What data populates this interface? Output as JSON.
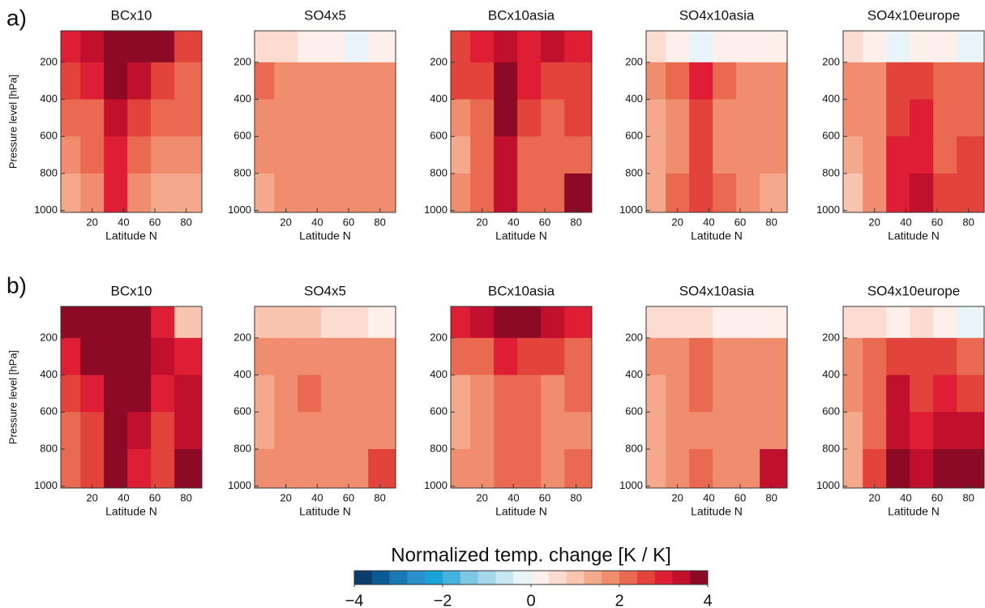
{
  "panel_labels": [
    "a)",
    "b)"
  ],
  "colorbar": {
    "label": "Normalized temp. change [K / K]",
    "lim": [
      -4,
      4
    ],
    "ticks": [
      {
        "value": -4,
        "label": "−4"
      },
      {
        "value": -2,
        "label": "−2"
      },
      0,
      2,
      4
    ],
    "colors": [
      "#0b3d6b",
      "#0a5a94",
      "#1a78b4",
      "#2b8fcb",
      "#1aa3d6",
      "#45b2dd",
      "#7cc7e3",
      "#a5d7ea",
      "#c9e7f0",
      "#e8f4f7",
      "#fdf0ea",
      "#fcdcd0",
      "#f9c4b0",
      "#f5a98c",
      "#f08d6e",
      "#e96a50",
      "#e2433a",
      "#dd1e34",
      "#c10f2e",
      "#8c0a25"
    ]
  },
  "chart_data": [
    {
      "type": "heatmap",
      "title": "BCx10",
      "xlabel": "Latitude N",
      "ylabel": "Pressure level [hPa]",
      "x": [
        5,
        20,
        35,
        50,
        65,
        80
      ],
      "y": [
        100,
        300,
        500,
        700,
        900
      ],
      "xlim": [
        0,
        90
      ],
      "ylim": [
        1010,
        30
      ],
      "xticks": [
        20,
        40,
        60,
        80
      ],
      "yticks": [
        200,
        400,
        600,
        800,
        1000
      ],
      "values": [
        [
          2.8,
          3.2,
          3.8,
          3.8,
          3.6,
          2.6
        ],
        [
          2.4,
          2.8,
          3.6,
          3.2,
          2.6,
          2.2
        ],
        [
          2,
          2.2,
          3.2,
          2.6,
          2.2,
          2
        ],
        [
          1.8,
          2,
          3,
          2.2,
          1.8,
          1.8
        ],
        [
          1.2,
          1.6,
          3,
          1.6,
          1.2,
          1.2
        ]
      ]
    },
    {
      "type": "heatmap",
      "title": "SO4x5",
      "xlabel": "Latitude N",
      "x": [
        5,
        20,
        35,
        50,
        65,
        80
      ],
      "y": [
        100,
        300,
        500,
        700,
        900
      ],
      "xlim": [
        0,
        90
      ],
      "ylim": [
        1010,
        30
      ],
      "xticks": [
        20,
        40,
        60,
        80
      ],
      "yticks": [
        200,
        400,
        600,
        800,
        1000
      ],
      "values": [
        [
          0.4,
          0.4,
          0.2,
          0.2,
          -0.2,
          0.2
        ],
        [
          2,
          1.8,
          1.8,
          1.8,
          1.8,
          1.8
        ],
        [
          1.8,
          1.8,
          1.8,
          1.8,
          1.8,
          1.8
        ],
        [
          1.6,
          1.8,
          1.8,
          1.8,
          1.8,
          1.8
        ],
        [
          1.4,
          1.6,
          1.6,
          1.8,
          1.8,
          1.6
        ]
      ]
    },
    {
      "type": "heatmap",
      "title": "BCx10asia",
      "xlabel": "Latitude N",
      "x": [
        5,
        20,
        35,
        50,
        65,
        80
      ],
      "y": [
        100,
        300,
        500,
        700,
        900
      ],
      "xlim": [
        0,
        90
      ],
      "ylim": [
        1010,
        30
      ],
      "xticks": [
        20,
        40,
        60,
        80
      ],
      "yticks": [
        200,
        400,
        600,
        800,
        1000
      ],
      "values": [
        [
          2.6,
          2.8,
          3.2,
          3,
          3.2,
          2.8
        ],
        [
          2.4,
          2.6,
          3.8,
          3,
          2.4,
          2.6
        ],
        [
          1.6,
          2.2,
          3.8,
          2.6,
          2.2,
          2.4
        ],
        [
          1.4,
          2,
          3.2,
          2.2,
          2,
          2.2
        ],
        [
          1.6,
          2.2,
          3.2,
          2.2,
          2.2,
          3.8
        ]
      ]
    },
    {
      "type": "heatmap",
      "title": "SO4x10asia",
      "xlabel": "Latitude N",
      "x": [
        5,
        20,
        35,
        50,
        65,
        80
      ],
      "y": [
        100,
        300,
        500,
        700,
        900
      ],
      "xlim": [
        0,
        90
      ],
      "ylim": [
        1010,
        30
      ],
      "xticks": [
        20,
        40,
        60,
        80
      ],
      "yticks": [
        200,
        400,
        600,
        800,
        1000
      ],
      "values": [
        [
          0.4,
          0.2,
          -0.2,
          0.2,
          0,
          0.2
        ],
        [
          1.6,
          2,
          2.8,
          2,
          1.8,
          1.8
        ],
        [
          1.4,
          1.8,
          2.4,
          1.8,
          1.6,
          1.8
        ],
        [
          1.2,
          1.8,
          2.4,
          1.8,
          1.6,
          1.8
        ],
        [
          1.2,
          2,
          2.6,
          2,
          1.6,
          1.4
        ]
      ]
    },
    {
      "type": "heatmap",
      "title": "SO4x10europe",
      "xlabel": "Latitude N",
      "x": [
        5,
        20,
        35,
        50,
        65,
        80
      ],
      "y": [
        100,
        300,
        500,
        700,
        900
      ],
      "xlim": [
        0,
        90
      ],
      "ylim": [
        1010,
        30
      ],
      "xticks": [
        20,
        40,
        60,
        80
      ],
      "yticks": [
        200,
        400,
        600,
        800,
        1000
      ],
      "values": [
        [
          0.4,
          0,
          -0.4,
          0,
          0.2,
          -0.2
        ],
        [
          1.6,
          1.6,
          2.4,
          2.6,
          2,
          2
        ],
        [
          1.6,
          1.8,
          2.6,
          3,
          2.2,
          2.2
        ],
        [
          1.2,
          1.8,
          2.8,
          3,
          2.2,
          2.4
        ],
        [
          1,
          1.8,
          3,
          3.4,
          2.4,
          2.4
        ]
      ]
    },
    {
      "type": "heatmap",
      "title": "BCx10",
      "xlabel": "Latitude N",
      "ylabel": "Pressure level [hPa]",
      "x": [
        5,
        20,
        35,
        50,
        65,
        80
      ],
      "y": [
        100,
        300,
        500,
        700,
        900
      ],
      "xlim": [
        0,
        90
      ],
      "ylim": [
        1010,
        30
      ],
      "xticks": [
        20,
        40,
        60,
        80
      ],
      "yticks": [
        200,
        400,
        600,
        800,
        1000
      ],
      "values": [
        [
          3.8,
          4,
          4,
          4,
          3,
          1
        ],
        [
          3,
          3.8,
          4,
          3.8,
          3.2,
          2.8
        ],
        [
          2.4,
          2.8,
          3.8,
          3.6,
          3,
          3.2
        ],
        [
          2.2,
          2.4,
          3.8,
          3.4,
          2.6,
          3.2
        ],
        [
          2.2,
          2.6,
          3.8,
          3,
          2.4,
          3.6
        ]
      ]
    },
    {
      "type": "heatmap",
      "title": "SO4x5",
      "xlabel": "Latitude N",
      "x": [
        5,
        20,
        35,
        50,
        65,
        80
      ],
      "y": [
        100,
        300,
        500,
        700,
        900
      ],
      "xlim": [
        0,
        90
      ],
      "ylim": [
        1010,
        30
      ],
      "xticks": [
        20,
        40,
        60,
        80
      ],
      "yticks": [
        200,
        400,
        600,
        800,
        1000
      ],
      "values": [
        [
          0.8,
          1,
          1,
          0.6,
          0.4,
          0.2
        ],
        [
          1.8,
          1.6,
          1.6,
          1.6,
          1.6,
          1.6
        ],
        [
          1.4,
          1.6,
          2,
          1.6,
          1.6,
          1.6
        ],
        [
          1.4,
          1.6,
          1.8,
          1.6,
          1.6,
          1.8
        ],
        [
          1.6,
          1.6,
          1.6,
          1.6,
          1.6,
          2.6
        ]
      ]
    },
    {
      "type": "heatmap",
      "title": "BCx10asia",
      "xlabel": "Latitude N",
      "x": [
        5,
        20,
        35,
        50,
        65,
        80
      ],
      "y": [
        100,
        300,
        500,
        700,
        900
      ],
      "xlim": [
        0,
        90
      ],
      "ylim": [
        1010,
        30
      ],
      "xticks": [
        20,
        40,
        60,
        80
      ],
      "yticks": [
        200,
        400,
        600,
        800,
        1000
      ],
      "values": [
        [
          3,
          3.2,
          3.6,
          3.8,
          3.4,
          3
        ],
        [
          2,
          2.2,
          2.8,
          2.6,
          2.4,
          2.2
        ],
        [
          1.4,
          1.8,
          2.2,
          2,
          1.8,
          2
        ],
        [
          1.4,
          1.6,
          2.2,
          2,
          1.8,
          1.8
        ],
        [
          1.6,
          1.8,
          2.2,
          2,
          1.8,
          2
        ]
      ]
    },
    {
      "type": "heatmap",
      "title": "SO4x10asia",
      "xlabel": "Latitude N",
      "x": [
        5,
        20,
        35,
        50,
        65,
        80
      ],
      "y": [
        100,
        300,
        500,
        700,
        900
      ],
      "xlim": [
        0,
        90
      ],
      "ylim": [
        1010,
        30
      ],
      "xticks": [
        20,
        40,
        60,
        80
      ],
      "yticks": [
        200,
        400,
        600,
        800,
        1000
      ],
      "values": [
        [
          0.6,
          0.6,
          0.4,
          0.2,
          0.2,
          0
        ],
        [
          1.6,
          1.8,
          2.2,
          1.8,
          1.6,
          1.6
        ],
        [
          1.4,
          1.6,
          2.2,
          1.8,
          1.6,
          1.6
        ],
        [
          1.2,
          1.6,
          1.8,
          1.8,
          1.6,
          1.6
        ],
        [
          1.2,
          1.6,
          2,
          1.8,
          1.6,
          3.2
        ]
      ]
    },
    {
      "type": "heatmap",
      "title": "SO4x10europe",
      "xlabel": "Latitude N",
      "x": [
        5,
        20,
        35,
        50,
        65,
        80
      ],
      "y": [
        100,
        300,
        500,
        700,
        900
      ],
      "xlim": [
        0,
        90
      ],
      "ylim": [
        1010,
        30
      ],
      "xticks": [
        20,
        40,
        60,
        80
      ],
      "yticks": [
        200,
        400,
        600,
        800,
        1000
      ],
      "values": [
        [
          0.6,
          0.6,
          0.2,
          0.4,
          0.2,
          -0.4
        ],
        [
          1.8,
          2,
          2.6,
          2.6,
          2.4,
          2
        ],
        [
          1.6,
          2.2,
          3.4,
          2.6,
          3,
          2.6
        ],
        [
          1.4,
          2.2,
          3.4,
          2.8,
          3.2,
          3.2
        ],
        [
          1.4,
          2.4,
          3.6,
          3.2,
          3.6,
          3.8
        ]
      ]
    }
  ]
}
